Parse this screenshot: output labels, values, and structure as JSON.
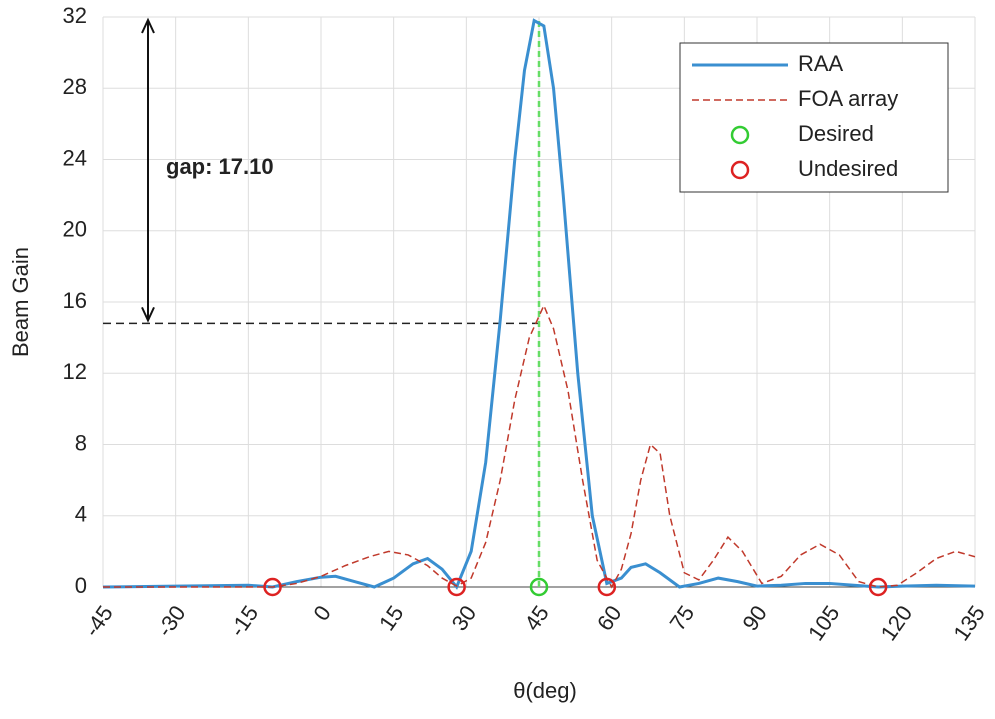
{
  "chart_data": {
    "type": "line",
    "xlabel": "θ(deg)",
    "ylabel": "Beam Gain",
    "xlim": [
      -45,
      135
    ],
    "ylim": [
      0,
      32
    ],
    "xticks": [
      -45,
      -30,
      -15,
      0,
      15,
      30,
      45,
      60,
      75,
      90,
      105,
      120,
      135
    ],
    "yticks": [
      0,
      4,
      8,
      12,
      16,
      20,
      24,
      28,
      32
    ],
    "grid": true,
    "legend": "upper right",
    "annotation": {
      "text": "gap: 17.10",
      "reference_y": 14.8
    },
    "series": [
      {
        "name": "RAA",
        "color": "#3a8fd0",
        "style": "solid",
        "x": [
          -45,
          -30,
          -15,
          -10,
          -5,
          0,
          3,
          7,
          11,
          15,
          19,
          22,
          25,
          28,
          31,
          34,
          37,
          40,
          42,
          44,
          46,
          48,
          50,
          53,
          56,
          59,
          62,
          64,
          67,
          70,
          74,
          78,
          82,
          86,
          90,
          95,
          100,
          105,
          110,
          115,
          120,
          127,
          135
        ],
        "values": [
          0,
          0.05,
          0.1,
          0,
          0.3,
          0.55,
          0.6,
          0.3,
          0,
          0.5,
          1.3,
          1.6,
          1.0,
          0,
          2,
          7,
          15,
          24,
          29,
          31.8,
          31.5,
          28,
          22,
          12,
          4,
          0.2,
          0.5,
          1.1,
          1.3,
          0.8,
          0,
          0.2,
          0.5,
          0.3,
          0.05,
          0.1,
          0.2,
          0.2,
          0.1,
          0,
          0.05,
          0.1,
          0.05
        ]
      },
      {
        "name": "FOA array",
        "color": "#c0392b",
        "style": "dashed",
        "x": [
          -45,
          -30,
          -15,
          -10,
          -5,
          0,
          5,
          10,
          14,
          18,
          22,
          25,
          28,
          31,
          34,
          37,
          40,
          43,
          46,
          48,
          51,
          54,
          57,
          60,
          62,
          64,
          66,
          68,
          70,
          72,
          75,
          78,
          81,
          84,
          87,
          91,
          95,
          99,
          103,
          107,
          111,
          115,
          119,
          123,
          127,
          131,
          135
        ],
        "values": [
          0,
          0,
          0,
          0,
          0.2,
          0.6,
          1.2,
          1.7,
          2,
          1.8,
          1.2,
          0.5,
          0.05,
          0.5,
          2.5,
          6,
          10.5,
          14,
          15.8,
          14.5,
          11,
          6,
          1.5,
          0,
          1,
          3,
          6,
          8,
          7.5,
          4,
          0.8,
          0.4,
          1.5,
          2.8,
          2,
          0.2,
          0.6,
          1.8,
          2.4,
          1.8,
          0.3,
          0,
          0.1,
          0.8,
          1.6,
          2,
          1.7
        ]
      },
      {
        "name": "Desired",
        "color": "#33cc33",
        "style": "marker",
        "x": [
          45
        ],
        "values": [
          0
        ]
      },
      {
        "name": "Undesired",
        "color": "#dd2222",
        "style": "marker",
        "x": [
          -10,
          28,
          59,
          115
        ],
        "values": [
          0,
          0,
          0,
          0
        ]
      }
    ]
  }
}
